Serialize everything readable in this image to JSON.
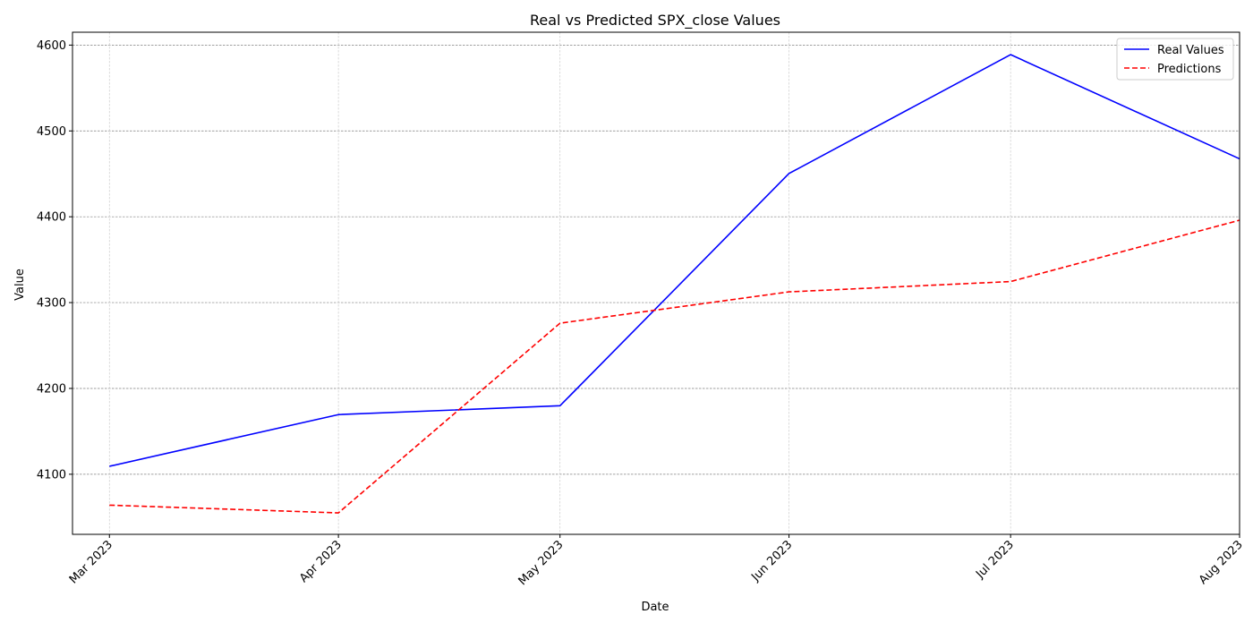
{
  "chart_data": {
    "type": "line",
    "title": "Real vs Predicted SPX_close Values",
    "xlabel": "Date",
    "ylabel": "Value",
    "x": [
      "2023-03-01",
      "2023-04-01",
      "2023-05-01",
      "2023-06-01",
      "2023-07-01",
      "2023-08-01"
    ],
    "x_tick_labels": [
      "Mar 2023",
      "Apr 2023",
      "May 2023",
      "Jun 2023",
      "Jul 2023",
      "Aug 2023"
    ],
    "xlim": [
      "2023-02-24",
      "2023-08-01"
    ],
    "ylim": [
      4030,
      4615
    ],
    "y_ticks": [
      4100,
      4200,
      4300,
      4400,
      4500,
      4600
    ],
    "series": [
      {
        "name": "Real Values",
        "color": "#0000ff",
        "style": "solid",
        "values": [
          4109.3,
          4169.5,
          4179.8,
          4450.4,
          4588.9,
          4467.5
        ]
      },
      {
        "name": "Predictions",
        "color": "#ff0000",
        "style": "dashed",
        "values": [
          4064,
          4055,
          4276,
          4312.5,
          4324.5,
          4396
        ]
      }
    ],
    "grid": true,
    "legend_position": "top-right"
  }
}
